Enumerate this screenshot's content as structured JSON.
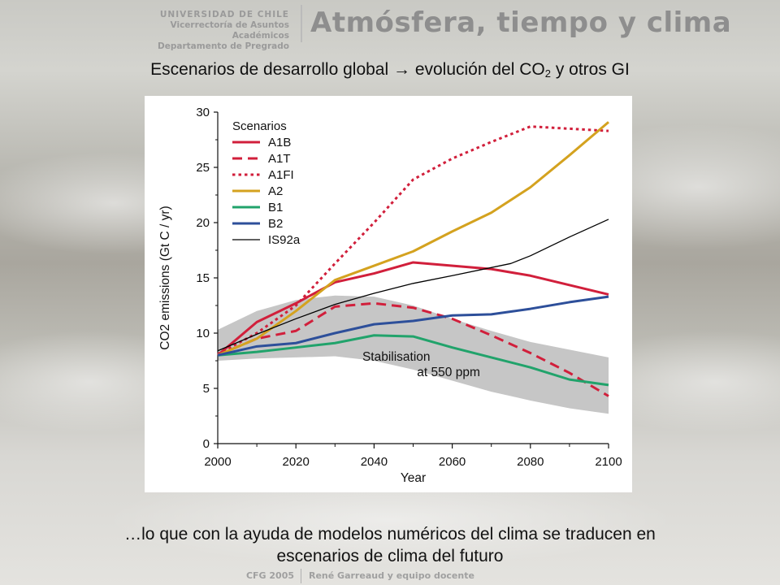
{
  "header": {
    "university": "UNIVERSIDAD DE CHILE",
    "vicerrectoria": "Vicerrectoría de Asuntos Académicos",
    "departamento": "Departamento de Pregrado",
    "course_title": "Atmósfera, tiempo y clima"
  },
  "slide": {
    "title_main": "Escenarios de desarrollo global → evolución del CO",
    "title_sub": "2",
    "title_end": " y otros GI",
    "caption_line1": "…lo que con la ayuda de modelos numéricos del clima se traducen en",
    "caption_line2": "escenarios de clima del futuro"
  },
  "footer": {
    "left": "CFG 2005",
    "right": "René Garreaud y equipo docente"
  },
  "chart_data": {
    "type": "line",
    "xlabel": "Year",
    "ylabel": "CO2 emissions (Gt C / yr)",
    "xlim": [
      2000,
      2100
    ],
    "ylim": [
      0,
      30
    ],
    "xticks": [
      2000,
      2020,
      2040,
      2060,
      2080,
      2100
    ],
    "yticks": [
      0,
      5,
      10,
      15,
      20,
      25,
      30
    ],
    "legend_title": "Scenarios",
    "legend_position": "top-left",
    "band_label_line1": "Stabilisation",
    "band_label_line2": "at 550 ppm",
    "band": {
      "x": [
        2000,
        2010,
        2020,
        2030,
        2040,
        2050,
        2060,
        2070,
        2080,
        2090,
        2100
      ],
      "upper": [
        10.3,
        12.0,
        13.0,
        13.4,
        13.3,
        12.5,
        11.3,
        10.2,
        9.2,
        8.5,
        7.8
      ],
      "lower": [
        7.5,
        7.7,
        7.8,
        7.9,
        7.5,
        6.7,
        5.7,
        4.7,
        3.9,
        3.2,
        2.7
      ]
    },
    "series": [
      {
        "name": "A1B",
        "color": "#d11f3b",
        "dash": "solid",
        "x": [
          2000,
          2010,
          2020,
          2030,
          2040,
          2050,
          2070,
          2080,
          2100
        ],
        "y": [
          8.0,
          11.0,
          12.7,
          14.6,
          15.4,
          16.4,
          15.8,
          15.2,
          13.5
        ]
      },
      {
        "name": "A1T",
        "color": "#d11f3b",
        "dash": "dashed",
        "x": [
          2000,
          2010,
          2020,
          2030,
          2040,
          2050,
          2060,
          2070,
          2080,
          2090,
          2100
        ],
        "y": [
          8.0,
          9.5,
          10.2,
          12.4,
          12.7,
          12.3,
          11.3,
          9.8,
          8.2,
          6.4,
          4.3
        ]
      },
      {
        "name": "A1FI",
        "color": "#d11f3b",
        "dash": "dotted",
        "x": [
          2000,
          2010,
          2020,
          2030,
          2040,
          2050,
          2060,
          2070,
          2080,
          2090,
          2100
        ],
        "y": [
          8.1,
          10.0,
          12.5,
          16.3,
          20.0,
          23.9,
          25.8,
          27.3,
          28.7,
          28.5,
          28.3
        ]
      },
      {
        "name": "A2",
        "color": "#d4a21f",
        "dash": "solid",
        "x": [
          2000,
          2010,
          2020,
          2030,
          2040,
          2050,
          2060,
          2070,
          2080,
          2090,
          2100
        ],
        "y": [
          8.0,
          9.5,
          12.0,
          14.8,
          16.1,
          17.4,
          19.2,
          20.9,
          23.2,
          26.1,
          29.1
        ]
      },
      {
        "name": "B1",
        "color": "#21a36b",
        "dash": "solid",
        "x": [
          2000,
          2010,
          2020,
          2030,
          2040,
          2050,
          2060,
          2070,
          2080,
          2090,
          2100
        ],
        "y": [
          8.0,
          8.3,
          8.7,
          9.1,
          9.8,
          9.7,
          8.7,
          7.8,
          6.9,
          5.8,
          5.3
        ]
      },
      {
        "name": "B2",
        "color": "#2d4f9a",
        "dash": "solid",
        "x": [
          2000,
          2010,
          2020,
          2030,
          2040,
          2050,
          2060,
          2070,
          2080,
          2090,
          2100
        ],
        "y": [
          8.0,
          8.8,
          9.1,
          10.0,
          10.8,
          11.1,
          11.6,
          11.7,
          12.2,
          12.8,
          13.3
        ]
      },
      {
        "name": "IS92a",
        "color": "#000000",
        "dash": "solid",
        "width": 1.3,
        "x": [
          2000,
          2010,
          2020,
          2030,
          2040,
          2050,
          2060,
          2075,
          2080,
          2090,
          2100
        ],
        "y": [
          8.4,
          9.9,
          11.3,
          12.6,
          13.6,
          14.5,
          15.2,
          16.3,
          17.0,
          18.7,
          20.3
        ]
      }
    ]
  }
}
